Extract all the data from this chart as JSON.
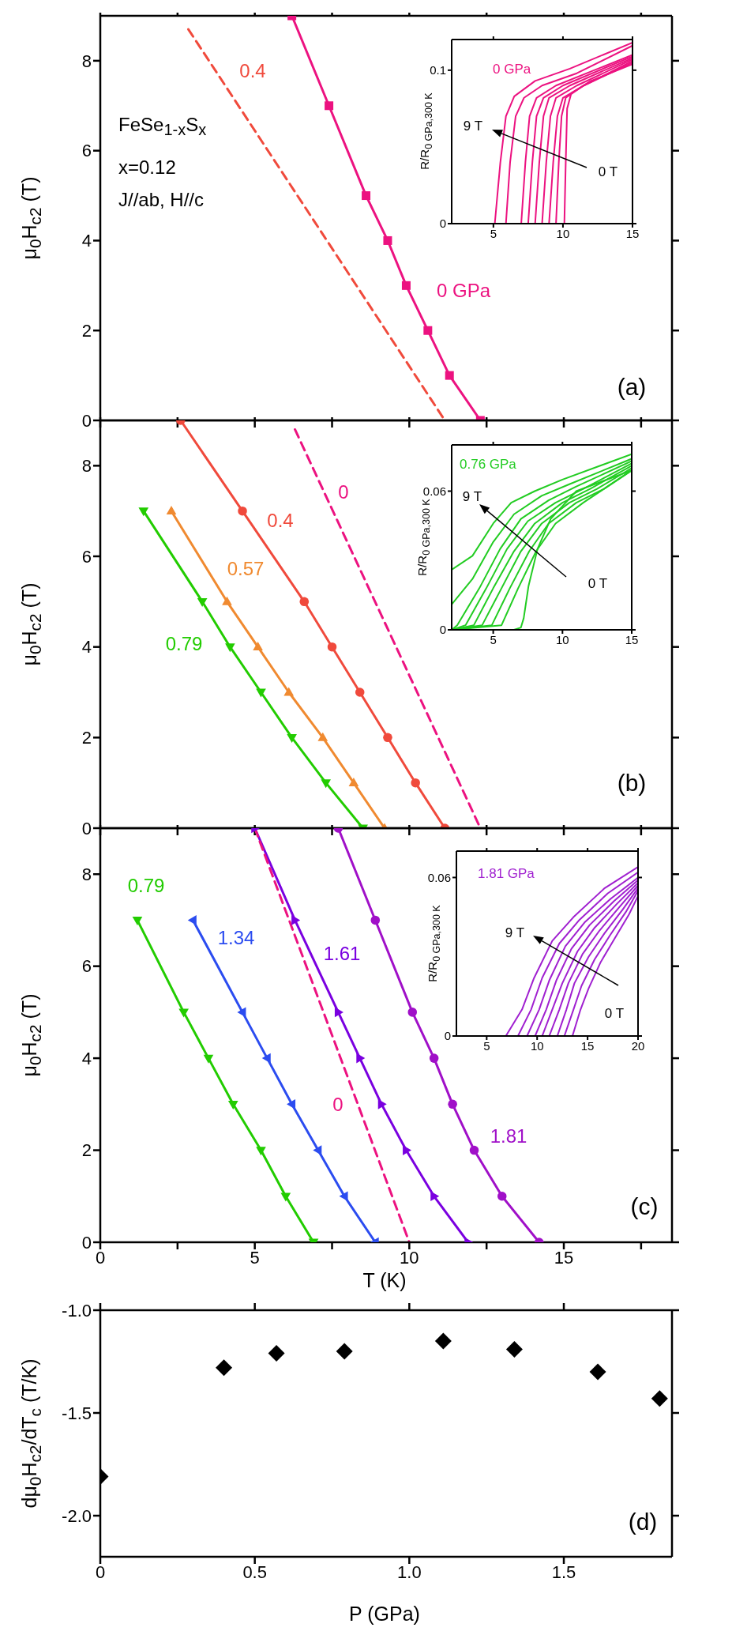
{
  "chart_data": [
    {
      "type": "line",
      "xlim": [
        0,
        18.5
      ],
      "ylim": [
        0,
        9
      ],
      "xticks": [
        0,
        {
          "value": 2.5,
          "label": null
        },
        5,
        {
          "value": 7.5,
          "label": null
        },
        10,
        {
          "value": 12.5,
          "label": null
        },
        15,
        {
          "value": 17.5,
          "label": null
        }
      ],
      "yticks": [
        0,
        2,
        4,
        6,
        8
      ],
      "ylabel": "μ$_{0}$H$_{c2}$ (T)",
      "tick_labels": "y",
      "annotations": [
        "FeSe$_{1-x}$S$_{x}$",
        "x=0.12",
        "J//ab, H//c",
        "(a)"
      ],
      "series": [
        {
          "name": "0 GPa",
          "color": "#ec1280",
          "marker": "square",
          "line_style": "solid",
          "x": [
            6.2,
            7.4,
            8.6,
            9.3,
            9.9,
            10.6,
            11.3,
            12.3
          ],
          "values": [
            9,
            7,
            5,
            4,
            3,
            2,
            1,
            0
          ]
        },
        {
          "name": "0.4",
          "color": "#f04a3c",
          "marker": "none",
          "line_style": "dashed",
          "x": [
            2.85,
            11.15
          ],
          "values": [
            8.7,
            0
          ]
        }
      ]
    },
    {
      "type": "line",
      "xlim": [
        2,
        15
      ],
      "ylim": [
        0,
        0.12
      ],
      "xticks": [
        5,
        10,
        15
      ],
      "yticks": [
        0,
        0.1
      ],
      "ylabel": "R/R$_{0 GPa,300 K}$",
      "marker": "none",
      "line_style": "solid",
      "annotations": [
        "0 GPa",
        "9 T",
        "0 T"
      ],
      "series": [
        {
          "color": "#ec1280",
          "x": [
            2,
            5.1,
            5.5,
            5.9,
            6.5,
            8,
            10.5,
            15
          ],
          "values": [
            0,
            0,
            0.04,
            0.07,
            0.083,
            0.093,
            0.101,
            0.118
          ]
        },
        {
          "color": "#ec1280",
          "x": [
            2,
            5.9,
            6.2,
            6.6,
            7.2,
            8.5,
            11,
            15
          ],
          "values": [
            0,
            0,
            0.04,
            0.07,
            0.082,
            0.09,
            0.098,
            0.116
          ]
        },
        {
          "color": "#ec1280",
          "x": [
            2,
            7.0,
            7.3,
            7.6,
            8.1,
            9.5,
            15
          ],
          "values": [
            0,
            0,
            0.04,
            0.07,
            0.082,
            0.09,
            0.11
          ]
        },
        {
          "color": "#ec1280",
          "x": [
            2,
            7.5,
            7.8,
            8.1,
            8.6,
            10,
            15
          ],
          "values": [
            0,
            0,
            0.04,
            0.07,
            0.082,
            0.09,
            0.109
          ]
        },
        {
          "color": "#ec1280",
          "x": [
            2,
            8.0,
            8.3,
            8.6,
            9.0,
            10.5,
            15
          ],
          "values": [
            0,
            0,
            0.04,
            0.07,
            0.082,
            0.09,
            0.108
          ]
        },
        {
          "color": "#ec1280",
          "x": [
            2,
            8.5,
            8.8,
            9.1,
            9.5,
            11,
            15
          ],
          "values": [
            0,
            0,
            0.04,
            0.07,
            0.082,
            0.09,
            0.107
          ]
        },
        {
          "color": "#ec1280",
          "x": [
            2,
            9.0,
            9.3,
            9.6,
            10.0,
            11.5,
            15
          ],
          "values": [
            0,
            0,
            0.04,
            0.07,
            0.082,
            0.09,
            0.106
          ]
        },
        {
          "color": "#ec1280",
          "x": [
            2,
            9.5,
            9.7,
            9.9,
            10.2,
            11.5,
            15
          ],
          "values": [
            0,
            0,
            0.04,
            0.07,
            0.082,
            0.09,
            0.105
          ]
        },
        {
          "color": "#ec1280",
          "x": [
            2,
            10.1,
            10.2,
            10.3,
            10.6,
            12,
            15
          ],
          "values": [
            0,
            0,
            0.04,
            0.075,
            0.085,
            0.093,
            0.104
          ]
        }
      ]
    },
    {
      "type": "line",
      "xlim": [
        0,
        18.5
      ],
      "ylim": [
        0,
        9
      ],
      "xticks": [
        0,
        {
          "value": 2.5,
          "label": null
        },
        5,
        {
          "value": 7.5,
          "label": null
        },
        10,
        {
          "value": 12.5,
          "label": null
        },
        15,
        {
          "value": 17.5,
          "label": null
        }
      ],
      "yticks": [
        0,
        2,
        4,
        6,
        8
      ],
      "ylabel": "μ$_{0}$H$_{c2}$ (T)",
      "tick_labels": "y",
      "annotations": [
        "(b)"
      ],
      "series": [
        {
          "name": "0.4",
          "color": "#f04a3c",
          "marker": "circle",
          "line_style": "solid",
          "x": [
            2.6,
            4.6,
            6.6,
            7.5,
            8.4,
            9.3,
            10.2,
            11.15
          ],
          "values": [
            9,
            7,
            5,
            4,
            3,
            2,
            1,
            0
          ]
        },
        {
          "name": "0.57",
          "color": "#f08a30",
          "marker": "triangle",
          "line_style": "solid",
          "x": [
            2.3,
            4.1,
            5.1,
            6.1,
            7.2,
            8.2,
            9.2
          ],
          "values": [
            7,
            5,
            4,
            3,
            2,
            1,
            0
          ]
        },
        {
          "name": "0.79",
          "color": "#22cc00",
          "marker": "triangle-down",
          "line_style": "solid",
          "x": [
            1.4,
            3.3,
            4.2,
            5.2,
            6.2,
            7.3,
            8.5
          ],
          "values": [
            7,
            5,
            4,
            3,
            2,
            1,
            0
          ]
        },
        {
          "name": "0",
          "color": "#ec1280",
          "marker": "none",
          "line_style": "dashed",
          "x": [
            6.3,
            12.3
          ],
          "values": [
            8.8,
            0
          ]
        }
      ]
    },
    {
      "type": "line",
      "xlim": [
        2,
        15
      ],
      "ylim": [
        0,
        0.08
      ],
      "xticks": [
        5,
        10,
        15
      ],
      "yticks": [
        0,
        0.06
      ],
      "ylabel": "R/R$_{0 GPa,300 K}$",
      "marker": "none",
      "line_style": "solid",
      "annotations": [
        "0.76 GPa",
        "9 T",
        "0 T"
      ],
      "series": [
        {
          "color": "#22cc22",
          "x": [
            2,
            3.5,
            5,
            6.3,
            8,
            10,
            15
          ],
          "values": [
            0.026,
            0.032,
            0.046,
            0.055,
            0.06,
            0.065,
            0.076
          ]
        },
        {
          "color": "#22cc22",
          "x": [
            2,
            3.5,
            5,
            6.5,
            8.5,
            10.5,
            15
          ],
          "values": [
            0.011,
            0.022,
            0.038,
            0.05,
            0.058,
            0.063,
            0.074
          ]
        },
        {
          "color": "#22cc22",
          "x": [
            2,
            2.4,
            4,
            5.5,
            7,
            9,
            11,
            15
          ],
          "values": [
            0,
            0.002,
            0.018,
            0.035,
            0.048,
            0.056,
            0.062,
            0.073
          ]
        },
        {
          "color": "#22cc22",
          "x": [
            2,
            3.0,
            4.5,
            6,
            7.5,
            9.5,
            11.5,
            15
          ],
          "values": [
            0,
            0.002,
            0.018,
            0.035,
            0.047,
            0.055,
            0.061,
            0.072
          ]
        },
        {
          "color": "#22cc22",
          "x": [
            2,
            3.6,
            5,
            6.5,
            8,
            10,
            12,
            15
          ],
          "values": [
            0,
            0.002,
            0.018,
            0.034,
            0.046,
            0.055,
            0.061,
            0.071
          ]
        },
        {
          "color": "#22cc22",
          "x": [
            2,
            4.2,
            5.6,
            7,
            8.5,
            10.5,
            12.5,
            15
          ],
          "values": [
            0,
            0.002,
            0.018,
            0.034,
            0.046,
            0.055,
            0.061,
            0.07
          ]
        },
        {
          "color": "#22cc22",
          "x": [
            2,
            4.9,
            6.2,
            7.6,
            9,
            11,
            13,
            15
          ],
          "values": [
            0,
            0.002,
            0.018,
            0.034,
            0.046,
            0.055,
            0.061,
            0.069
          ]
        },
        {
          "color": "#22cc22",
          "x": [
            2,
            5.6,
            6.8,
            8.1,
            9.5,
            11.5,
            13,
            15
          ],
          "values": [
            0,
            0.002,
            0.018,
            0.034,
            0.046,
            0.055,
            0.061,
            0.069
          ]
        },
        {
          "color": "#22cc22",
          "x": [
            2,
            6.5,
            7.0,
            7.2,
            7.55,
            8.2,
            9.15,
            11,
            15
          ],
          "values": [
            0,
            0,
            0.001,
            0.005,
            0.019,
            0.035,
            0.048,
            0.06,
            0.069
          ]
        }
      ]
    },
    {
      "type": "line",
      "xlim": [
        0,
        18.5
      ],
      "ylim": [
        0,
        9
      ],
      "xticks": [
        0,
        {
          "value": 2.5,
          "label": null
        },
        5,
        {
          "value": 7.5,
          "label": null
        },
        10,
        {
          "value": 12.5,
          "label": null
        },
        15,
        {
          "value": 17.5,
          "label": null
        }
      ],
      "yticks": [
        0,
        2,
        4,
        6,
        8
      ],
      "xlabel": "T (K)",
      "ylabel": "μ$_{0}$H$_{c2}$ (T)",
      "annotations": [
        "(c)"
      ],
      "series": [
        {
          "name": "0.79",
          "color": "#22cc00",
          "marker": "triangle-down",
          "line_style": "solid",
          "x": [
            1.2,
            2.7,
            3.5,
            4.3,
            5.2,
            6.0,
            6.9
          ],
          "values": [
            7,
            5,
            4,
            3,
            2,
            1,
            0
          ]
        },
        {
          "name": "1.34",
          "color": "#2b4cf0",
          "marker": "triangle-left",
          "line_style": "solid",
          "x": [
            3.0,
            4.6,
            5.4,
            6.2,
            7.05,
            7.9,
            8.9
          ],
          "values": [
            7,
            5,
            4,
            3,
            2,
            1,
            0
          ]
        },
        {
          "name": "1.61",
          "color": "#7a00e0",
          "marker": "triangle-right",
          "line_style": "solid",
          "x": [
            5.0,
            6.3,
            7.7,
            8.4,
            9.1,
            9.9,
            10.8,
            11.9
          ],
          "values": [
            9,
            7,
            5,
            4,
            3,
            2,
            1,
            0
          ]
        },
        {
          "name": "0",
          "color": "#ec1280",
          "marker": "none",
          "line_style": "dashed",
          "x": [
            5.0,
            10.0
          ],
          "values": [
            9,
            0
          ]
        },
        {
          "name": "1.81",
          "color": "#a010c8",
          "marker": "circle",
          "line_style": "solid",
          "x": [
            7.7,
            8.9,
            10.1,
            10.8,
            11.4,
            12.1,
            13.0,
            14.2
          ],
          "values": [
            9,
            7,
            5,
            4,
            3,
            2,
            1,
            0
          ]
        }
      ]
    },
    {
      "type": "line",
      "xlim": [
        2,
        20
      ],
      "ylim": [
        0,
        0.07
      ],
      "xticks": [
        5,
        10,
        15,
        20
      ],
      "yticks": [
        0,
        0.06
      ],
      "ylabel": "R/R$_{0 GPa,300 K}$",
      "marker": "none",
      "line_style": "solid",
      "annotations": [
        "1.81 GPa",
        "9 T",
        "0 T"
      ],
      "series": [
        {
          "color": "#a020d0",
          "x": [
            2,
            6.9,
            8.5,
            9.7,
            11.5,
            13.6,
            16.7,
            20
          ],
          "values": [
            0,
            0,
            0.01,
            0.022,
            0.036,
            0.045,
            0.056,
            0.064
          ]
        },
        {
          "color": "#a020d0",
          "x": [
            2,
            8.1,
            9.4,
            10.5,
            12.2,
            14.2,
            17,
            20
          ],
          "values": [
            0,
            0,
            0.01,
            0.022,
            0.035,
            0.044,
            0.054,
            0.062
          ]
        },
        {
          "color": "#a020d0",
          "x": [
            2,
            9.0,
            10.2,
            11.2,
            12.8,
            14.7,
            17.3,
            20
          ],
          "values": [
            0,
            0,
            0.01,
            0.021,
            0.034,
            0.043,
            0.052,
            0.06
          ]
        },
        {
          "color": "#a020d0",
          "x": [
            2,
            9.8,
            10.9,
            11.9,
            13.4,
            15.2,
            17.6,
            20
          ],
          "values": [
            0,
            0,
            0.01,
            0.021,
            0.033,
            0.042,
            0.051,
            0.059
          ]
        },
        {
          "color": "#a020d0",
          "x": [
            2,
            10.5,
            11.5,
            12.5,
            14,
            15.7,
            17.9,
            20
          ],
          "values": [
            0,
            0,
            0.01,
            0.02,
            0.032,
            0.041,
            0.05,
            0.058
          ]
        },
        {
          "color": "#a020d0",
          "x": [
            2,
            11.2,
            12.2,
            13.1,
            14.5,
            16.2,
            18.2,
            20
          ],
          "values": [
            0,
            0,
            0.01,
            0.02,
            0.031,
            0.04,
            0.049,
            0.057
          ]
        },
        {
          "color": "#a020d0",
          "x": [
            2,
            12.0,
            12.9,
            13.7,
            15.1,
            16.7,
            18.5,
            20
          ],
          "values": [
            0,
            0,
            0.01,
            0.02,
            0.03,
            0.039,
            0.048,
            0.056
          ]
        },
        {
          "color": "#a020d0",
          "x": [
            2,
            12.7,
            13.6,
            14.4,
            15.7,
            17.2,
            18.8,
            20
          ],
          "values": [
            0,
            0,
            0.01,
            0.019,
            0.029,
            0.038,
            0.047,
            0.055
          ]
        },
        {
          "color": "#a020d0",
          "x": [
            2,
            13.5,
            14.3,
            15.1,
            16.3,
            17.7,
            19.1,
            20
          ],
          "values": [
            0,
            0,
            0.01,
            0.018,
            0.028,
            0.037,
            0.046,
            0.053
          ]
        }
      ]
    },
    {
      "type": "scatter",
      "xlim": [
        0,
        1.85
      ],
      "ylim": [
        -2.2,
        -1.0
      ],
      "xticks": [
        0,
        0.5,
        {
          "value": 1,
          "label": "1.0"
        },
        1.5
      ],
      "yticks": [
        {
          "value": -1,
          "label": "-1.0"
        },
        -1.5,
        {
          "value": -2,
          "label": "-2.0"
        }
      ],
      "xlabel": "P (GPa)",
      "ylabel": "dμ$_{0}$H$_{c2}$/dT$_{c}$ (T/K)",
      "marker": "diamond",
      "annotations": [
        "(d)"
      ],
      "series": [
        {
          "color": "#000000",
          "x": [
            0,
            0.4,
            0.57,
            0.79,
            1.11,
            1.34,
            1.61,
            1.81
          ],
          "values": [
            -1.81,
            -1.28,
            -1.21,
            -1.2,
            -1.15,
            -1.19,
            -1.3,
            -1.43
          ]
        }
      ]
    }
  ]
}
